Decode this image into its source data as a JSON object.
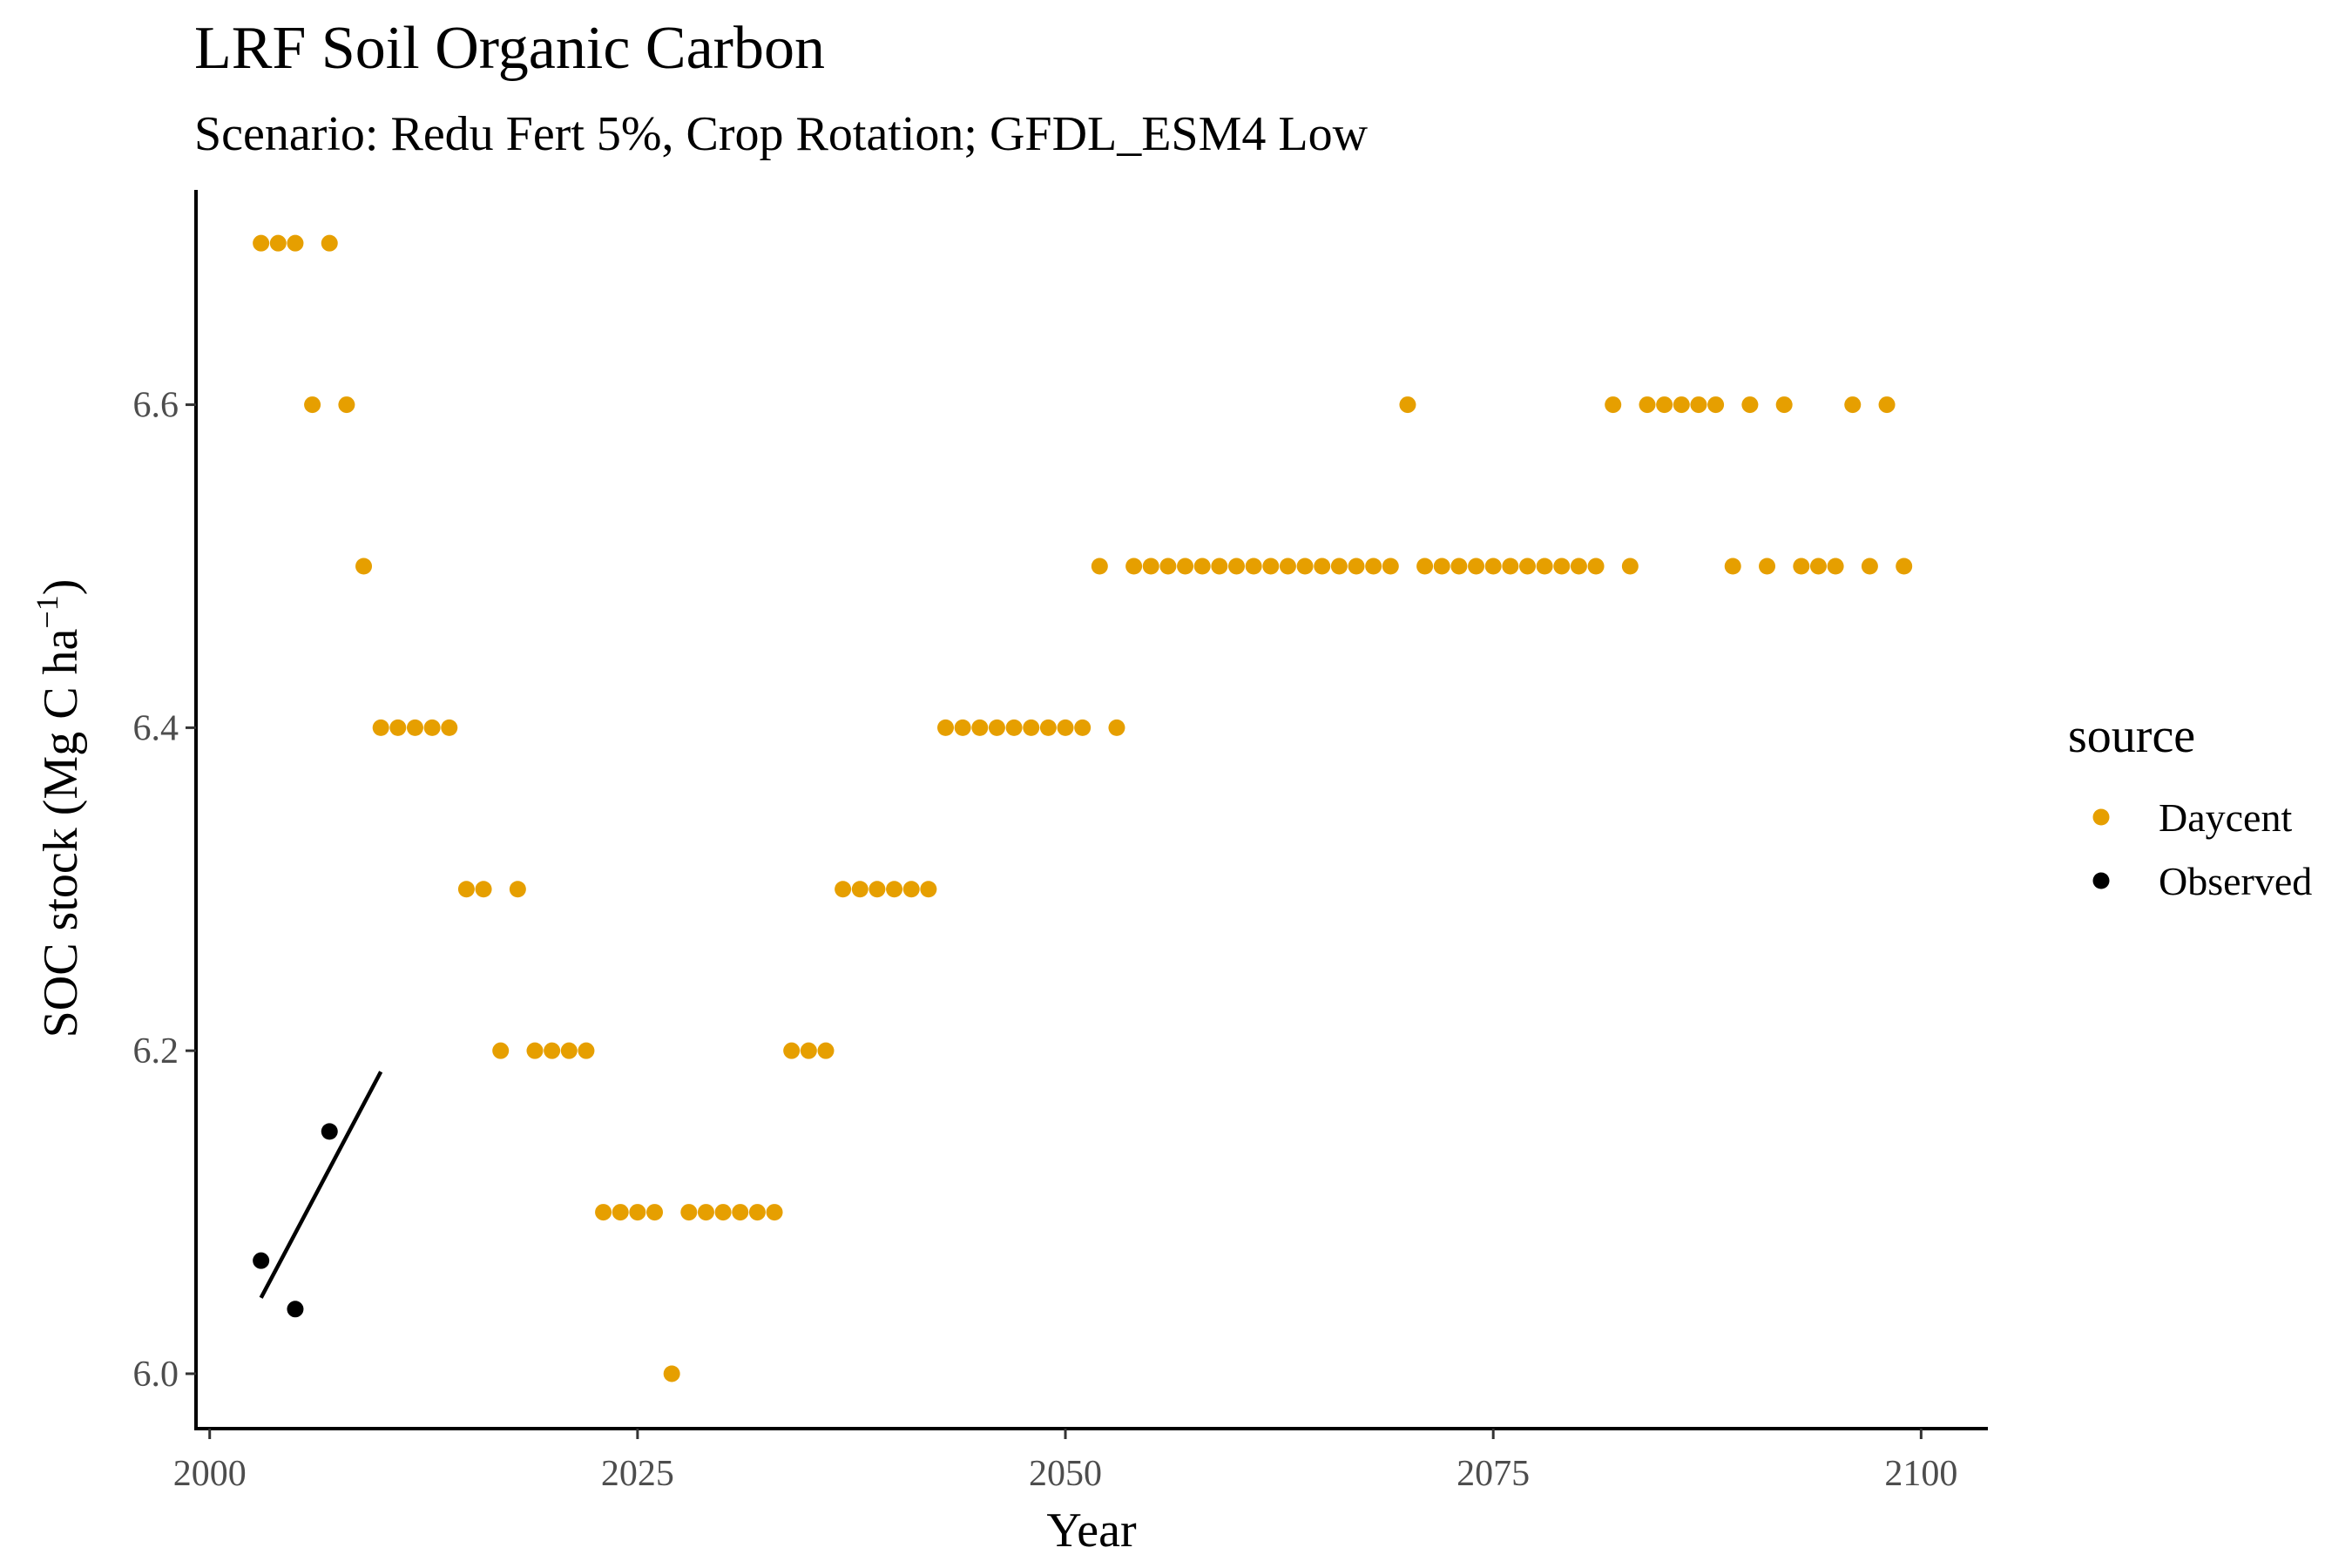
{
  "chart_data": {
    "type": "scatter",
    "title": "LRF Soil Organic Carbon",
    "subtitle": "Scenario: Redu Fert 5%, Crop Rotation; GFDL_ESM4 Low",
    "xlabel": "Year",
    "ylabel_main": "SOC stock (Mg C ha",
    "ylabel_sup": "−1",
    "ylabel_close": ")",
    "xlim": [
      1999.2,
      2103.8
    ],
    "ylim": [
      5.966,
      6.733
    ],
    "xticks": [
      2000,
      2025,
      2050,
      2075,
      2100
    ],
    "yticks": [
      6.0,
      6.2,
      6.4,
      6.6
    ],
    "ytick_labels": [
      "6.0",
      "6.2",
      "6.4",
      "6.6"
    ],
    "grid": false,
    "legend": {
      "title": "source",
      "position": "right"
    },
    "series": [
      {
        "name": "Daycent",
        "color": "#E69F00",
        "points": [
          [
            2003,
            6.7
          ],
          [
            2004,
            6.7
          ],
          [
            2005,
            6.7
          ],
          [
            2006,
            6.6
          ],
          [
            2007,
            6.7
          ],
          [
            2008,
            6.6
          ],
          [
            2009,
            6.5
          ],
          [
            2010,
            6.4
          ],
          [
            2011,
            6.4
          ],
          [
            2012,
            6.4
          ],
          [
            2013,
            6.4
          ],
          [
            2014,
            6.4
          ],
          [
            2015,
            6.3
          ],
          [
            2016,
            6.3
          ],
          [
            2017,
            6.2
          ],
          [
            2018,
            6.3
          ],
          [
            2019,
            6.2
          ],
          [
            2020,
            6.2
          ],
          [
            2021,
            6.2
          ],
          [
            2022,
            6.2
          ],
          [
            2023,
            6.1
          ],
          [
            2024,
            6.1
          ],
          [
            2025,
            6.1
          ],
          [
            2026,
            6.1
          ],
          [
            2027,
            6.0
          ],
          [
            2028,
            6.1
          ],
          [
            2029,
            6.1
          ],
          [
            2030,
            6.1
          ],
          [
            2031,
            6.1
          ],
          [
            2032,
            6.1
          ],
          [
            2033,
            6.1
          ],
          [
            2034,
            6.2
          ],
          [
            2035,
            6.2
          ],
          [
            2036,
            6.2
          ],
          [
            2037,
            6.3
          ],
          [
            2038,
            6.3
          ],
          [
            2039,
            6.3
          ],
          [
            2040,
            6.3
          ],
          [
            2041,
            6.3
          ],
          [
            2042,
            6.3
          ],
          [
            2043,
            6.4
          ],
          [
            2044,
            6.4
          ],
          [
            2045,
            6.4
          ],
          [
            2046,
            6.4
          ],
          [
            2047,
            6.4
          ],
          [
            2048,
            6.4
          ],
          [
            2049,
            6.4
          ],
          [
            2050,
            6.4
          ],
          [
            2051,
            6.4
          ],
          [
            2052,
            6.5
          ],
          [
            2053,
            6.4
          ],
          [
            2054,
            6.5
          ],
          [
            2055,
            6.5
          ],
          [
            2056,
            6.5
          ],
          [
            2057,
            6.5
          ],
          [
            2058,
            6.5
          ],
          [
            2059,
            6.5
          ],
          [
            2060,
            6.5
          ],
          [
            2061,
            6.5
          ],
          [
            2062,
            6.5
          ],
          [
            2063,
            6.5
          ],
          [
            2064,
            6.5
          ],
          [
            2065,
            6.5
          ],
          [
            2066,
            6.5
          ],
          [
            2067,
            6.5
          ],
          [
            2068,
            6.5
          ],
          [
            2069,
            6.5
          ],
          [
            2070,
            6.6
          ],
          [
            2071,
            6.5
          ],
          [
            2072,
            6.5
          ],
          [
            2073,
            6.5
          ],
          [
            2074,
            6.5
          ],
          [
            2075,
            6.5
          ],
          [
            2076,
            6.5
          ],
          [
            2077,
            6.5
          ],
          [
            2078,
            6.5
          ],
          [
            2079,
            6.5
          ],
          [
            2080,
            6.5
          ],
          [
            2081,
            6.5
          ],
          [
            2082,
            6.6
          ],
          [
            2083,
            6.5
          ],
          [
            2084,
            6.6
          ],
          [
            2085,
            6.6
          ],
          [
            2086,
            6.6
          ],
          [
            2087,
            6.6
          ],
          [
            2088,
            6.6
          ],
          [
            2089,
            6.5
          ],
          [
            2090,
            6.6
          ],
          [
            2091,
            6.5
          ],
          [
            2092,
            6.6
          ],
          [
            2093,
            6.5
          ],
          [
            2094,
            6.5
          ],
          [
            2095,
            6.5
          ],
          [
            2096,
            6.6
          ],
          [
            2097,
            6.5
          ],
          [
            2098,
            6.6
          ],
          [
            2099,
            6.5
          ]
        ]
      },
      {
        "name": "Observed",
        "color": "#000000",
        "points": [
          [
            2003,
            6.07
          ],
          [
            2005,
            6.04
          ],
          [
            2007,
            6.15
          ]
        ]
      }
    ],
    "trend_line": {
      "series": "Observed",
      "color": "#000000",
      "from": [
        2003,
        6.047
      ],
      "to": [
        2010,
        6.187
      ]
    }
  }
}
